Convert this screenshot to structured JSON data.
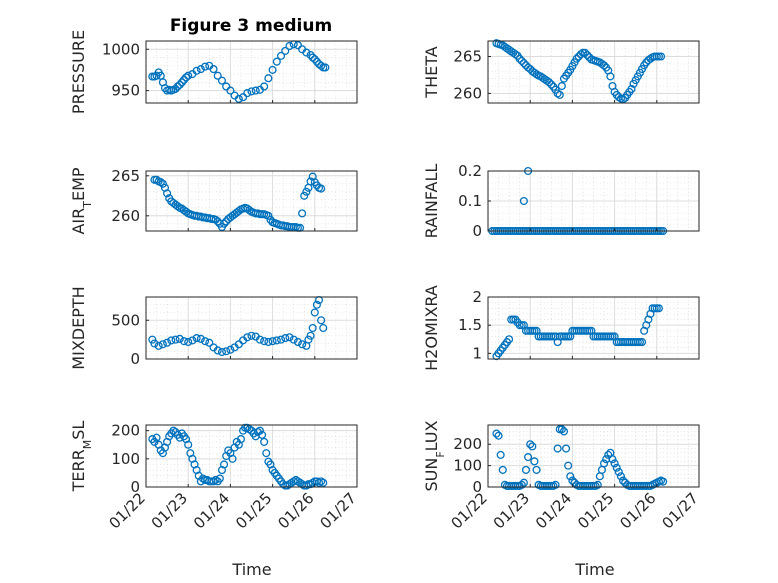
{
  "figure": {
    "title": "Figure 3 medium",
    "marker_color": "#0072BD",
    "time_label": "Time",
    "date_ticks": [
      "01/22",
      "01/23",
      "01/24",
      "01/25",
      "01/26",
      "01/27"
    ]
  },
  "chart_data": [
    {
      "type": "scatter",
      "ylabel": "PRESSURE",
      "ylim": [
        935,
        1010
      ],
      "yticks": [
        950,
        1000
      ],
      "ytick_labels": [
        "950",
        "1000"
      ],
      "show_xtick_labels": false,
      "x": [
        0.15,
        0.2,
        0.25,
        0.3,
        0.35,
        0.4,
        0.45,
        0.5,
        0.55,
        0.6,
        0.65,
        0.7,
        0.75,
        0.8,
        0.85,
        0.9,
        0.95,
        1.0,
        1.1,
        1.2,
        1.3,
        1.4,
        1.5,
        1.6,
        1.7,
        1.8,
        1.9,
        2.0,
        2.1,
        2.2,
        2.3,
        2.4,
        2.5,
        2.6,
        2.7,
        2.8,
        2.9,
        3.0,
        3.1,
        3.2,
        3.3,
        3.4,
        3.5,
        3.6,
        3.7,
        3.8,
        3.9,
        3.95,
        4.0,
        4.05,
        4.1,
        4.15,
        4.2,
        4.25
      ],
      "y": [
        967,
        967,
        968,
        972,
        968,
        960,
        953,
        950,
        951,
        950,
        951,
        952,
        955,
        957,
        960,
        963,
        966,
        968,
        970,
        974,
        976,
        979,
        980,
        976,
        968,
        962,
        955,
        950,
        944,
        940,
        942,
        947,
        949,
        950,
        951,
        955,
        965,
        975,
        985,
        992,
        998,
        1004,
        1006,
        1005,
        1000,
        996,
        993,
        990,
        988,
        985,
        982,
        980,
        978,
        978
      ]
    },
    {
      "type": "scatter",
      "ylabel": "THETA",
      "ylim": [
        258.7,
        267.1
      ],
      "yticks": [
        260,
        265
      ],
      "ytick_labels": [
        "260",
        "265"
      ],
      "show_xtick_labels": false,
      "x": [
        0.2,
        0.25,
        0.3,
        0.35,
        0.4,
        0.45,
        0.5,
        0.55,
        0.6,
        0.65,
        0.7,
        0.75,
        0.8,
        0.85,
        0.9,
        0.95,
        1.0,
        1.05,
        1.1,
        1.15,
        1.2,
        1.25,
        1.3,
        1.35,
        1.4,
        1.45,
        1.5,
        1.55,
        1.6,
        1.65,
        1.7,
        1.75,
        1.8,
        1.85,
        1.9,
        1.95,
        2.0,
        2.05,
        2.1,
        2.15,
        2.2,
        2.25,
        2.3,
        2.35,
        2.4,
        2.45,
        2.5,
        2.55,
        2.6,
        2.65,
        2.7,
        2.75,
        2.8,
        2.85,
        2.9,
        2.95,
        3.0,
        3.05,
        3.1,
        3.15,
        3.2,
        3.25,
        3.3,
        3.35,
        3.4,
        3.45,
        3.5,
        3.55,
        3.6,
        3.65,
        3.7,
        3.75,
        3.8,
        3.85,
        3.9,
        3.95,
        4.0,
        4.05,
        4.1
      ],
      "y": [
        266.8,
        266.7,
        266.6,
        266.5,
        266.3,
        266.1,
        265.9,
        265.7,
        265.5,
        265.3,
        265.1,
        264.7,
        264.4,
        264.1,
        263.8,
        263.5,
        263.3,
        263.0,
        262.8,
        262.6,
        262.4,
        262.3,
        262.1,
        261.9,
        261.7,
        261.5,
        261.2,
        260.9,
        260.5,
        260.0,
        259.8,
        261.0,
        262.0,
        262.4,
        262.8,
        263.2,
        263.7,
        264.2,
        264.7,
        265.0,
        265.3,
        265.5,
        265.5,
        265.2,
        264.9,
        264.6,
        264.5,
        264.4,
        264.3,
        264.2,
        264.0,
        263.8,
        263.5,
        263.1,
        262.3,
        261.0,
        260.2,
        259.8,
        259.5,
        259.3,
        259.2,
        259.4,
        259.8,
        260.2,
        260.6,
        261.3,
        261.8,
        262.3,
        262.8,
        263.3,
        263.8,
        264.2,
        264.5,
        264.7,
        264.9,
        265.0,
        265.0,
        265.0,
        265.0
      ]
    },
    {
      "type": "scatter",
      "ylabel": "AIR_TEMP",
      "ylim": [
        258.1,
        265.6
      ],
      "yticks": [
        260,
        265
      ],
      "ytick_labels": [
        "260",
        "265"
      ],
      "show_xtick_labels": false,
      "x": [
        0.2,
        0.25,
        0.3,
        0.35,
        0.4,
        0.45,
        0.5,
        0.55,
        0.6,
        0.65,
        0.7,
        0.75,
        0.8,
        0.85,
        0.9,
        0.95,
        1.0,
        1.05,
        1.1,
        1.15,
        1.2,
        1.25,
        1.3,
        1.35,
        1.4,
        1.45,
        1.5,
        1.55,
        1.6,
        1.65,
        1.7,
        1.75,
        1.8,
        1.85,
        1.9,
        1.95,
        2.0,
        2.05,
        2.1,
        2.15,
        2.2,
        2.25,
        2.3,
        2.35,
        2.4,
        2.45,
        2.5,
        2.55,
        2.6,
        2.65,
        2.7,
        2.75,
        2.8,
        2.85,
        2.9,
        2.95,
        3.0,
        3.05,
        3.1,
        3.15,
        3.2,
        3.25,
        3.3,
        3.35,
        3.4,
        3.45,
        3.5,
        3.55,
        3.6,
        3.65,
        3.7,
        3.75,
        3.8,
        3.85,
        3.9,
        3.95,
        4.0,
        4.05,
        4.1,
        4.15
      ],
      "y": [
        264.5,
        264.5,
        264.3,
        264.2,
        264.0,
        263.5,
        262.8,
        262.2,
        261.8,
        261.6,
        261.4,
        261.2,
        261.0,
        260.9,
        260.7,
        260.5,
        260.3,
        260.2,
        260.1,
        260.0,
        260.0,
        259.9,
        259.9,
        259.8,
        259.8,
        259.7,
        259.7,
        259.6,
        259.6,
        259.5,
        259.3,
        259.0,
        258.6,
        259.0,
        259.3,
        259.6,
        259.8,
        260.0,
        260.2,
        260.4,
        260.6,
        260.8,
        260.9,
        261.0,
        260.9,
        260.7,
        260.5,
        260.4,
        260.3,
        260.3,
        260.2,
        260.2,
        260.2,
        260.1,
        260.0,
        259.5,
        259.2,
        259.1,
        259.0,
        258.9,
        258.8,
        258.8,
        258.7,
        258.7,
        258.6,
        258.6,
        258.6,
        258.6,
        258.5,
        258.5,
        260.3,
        262.5,
        263.0,
        263.5,
        264.3,
        264.9,
        264.2,
        263.8,
        263.5,
        263.4
      ]
    },
    {
      "type": "scatter",
      "ylabel": "RAINFALL",
      "ylim": [
        0,
        0.2
      ],
      "yticks": [
        0,
        0.1,
        0.2
      ],
      "ytick_labels": [
        "0",
        "0.1",
        "0.2"
      ],
      "show_xtick_labels": false,
      "x": [
        0.1,
        0.15,
        0.2,
        0.25,
        0.3,
        0.35,
        0.4,
        0.45,
        0.5,
        0.55,
        0.6,
        0.65,
        0.7,
        0.75,
        0.8,
        0.85,
        0.9,
        0.95,
        1.0,
        1.05,
        1.1,
        1.15,
        1.2,
        1.25,
        1.3,
        1.35,
        1.4,
        1.45,
        1.5,
        1.55,
        1.6,
        1.65,
        1.7,
        1.75,
        1.8,
        1.85,
        1.9,
        1.95,
        2.0,
        2.05,
        2.1,
        2.15,
        2.2,
        2.25,
        2.3,
        2.35,
        2.4,
        2.45,
        2.5,
        2.55,
        2.6,
        2.65,
        2.7,
        2.75,
        2.8,
        2.85,
        2.9,
        2.95,
        3.0,
        3.05,
        3.1,
        3.15,
        3.2,
        3.25,
        3.3,
        3.35,
        3.4,
        3.45,
        3.5,
        3.55,
        3.6,
        3.65,
        3.7,
        3.75,
        3.8,
        3.85,
        3.9,
        3.95,
        4.0,
        4.05,
        4.1,
        4.15,
        0.85,
        0.95
      ],
      "y": [
        0,
        0,
        0,
        0,
        0,
        0,
        0,
        0,
        0,
        0,
        0,
        0,
        0,
        0,
        0,
        0,
        0,
        0,
        0,
        0,
        0,
        0,
        0,
        0,
        0,
        0,
        0,
        0,
        0,
        0,
        0,
        0,
        0,
        0,
        0,
        0,
        0,
        0,
        0,
        0,
        0,
        0,
        0,
        0,
        0,
        0,
        0,
        0,
        0,
        0,
        0,
        0,
        0,
        0,
        0,
        0,
        0,
        0,
        0,
        0,
        0,
        0,
        0,
        0,
        0,
        0,
        0,
        0,
        0,
        0,
        0,
        0,
        0,
        0,
        0,
        0,
        0,
        0,
        0,
        0,
        0,
        0,
        0.1,
        0.2
      ]
    },
    {
      "type": "scatter",
      "ylabel": "MIXDEPTH",
      "ylim": [
        0,
        800
      ],
      "yticks": [
        0,
        500
      ],
      "ytick_labels": [
        "0",
        "500"
      ],
      "show_xtick_labels": false,
      "x": [
        0.15,
        0.2,
        0.3,
        0.4,
        0.5,
        0.6,
        0.7,
        0.8,
        0.9,
        1.0,
        1.1,
        1.2,
        1.3,
        1.4,
        1.5,
        1.6,
        1.7,
        1.8,
        1.9,
        2.0,
        2.1,
        2.2,
        2.3,
        2.4,
        2.5,
        2.6,
        2.7,
        2.8,
        2.9,
        3.0,
        3.1,
        3.2,
        3.3,
        3.4,
        3.5,
        3.6,
        3.7,
        3.8,
        3.85,
        3.9,
        3.95,
        4.0,
        4.05,
        4.1,
        4.15,
        4.2
      ],
      "y": [
        250,
        200,
        170,
        190,
        210,
        240,
        250,
        260,
        230,
        220,
        240,
        270,
        260,
        230,
        210,
        150,
        110,
        90,
        100,
        120,
        150,
        190,
        240,
        280,
        300,
        290,
        250,
        230,
        220,
        230,
        240,
        250,
        270,
        280,
        250,
        220,
        190,
        170,
        250,
        300,
        400,
        600,
        700,
        760,
        500,
        400
      ]
    },
    {
      "type": "scatter",
      "ylabel": "H2OMIXRA",
      "ylim": [
        0.9,
        2.0
      ],
      "yticks": [
        1,
        1.5,
        2
      ],
      "ytick_labels": [
        "1",
        "1.5",
        "2"
      ],
      "show_xtick_labels": false,
      "x": [
        0.2,
        0.25,
        0.3,
        0.35,
        0.4,
        0.45,
        0.5,
        0.55,
        0.6,
        0.65,
        0.7,
        0.75,
        0.8,
        0.85,
        0.9,
        0.95,
        1.0,
        1.05,
        1.1,
        1.15,
        1.2,
        1.25,
        1.3,
        1.35,
        1.4,
        1.45,
        1.5,
        1.55,
        1.6,
        1.65,
        1.7,
        1.75,
        1.8,
        1.85,
        1.9,
        1.95,
        2.0,
        2.05,
        2.1,
        2.15,
        2.2,
        2.25,
        2.3,
        2.35,
        2.4,
        2.45,
        2.5,
        2.55,
        2.6,
        2.65,
        2.7,
        2.75,
        2.8,
        2.85,
        2.9,
        2.95,
        3.0,
        3.05,
        3.1,
        3.15,
        3.2,
        3.25,
        3.3,
        3.35,
        3.4,
        3.45,
        3.5,
        3.55,
        3.6,
        3.65,
        3.7,
        3.75,
        3.8,
        3.85,
        3.9,
        3.95,
        4.0,
        4.05
      ],
      "y": [
        0.95,
        1.0,
        1.05,
        1.1,
        1.15,
        1.2,
        1.25,
        1.6,
        1.6,
        1.6,
        1.55,
        1.5,
        1.5,
        1.5,
        1.4,
        1.4,
        1.4,
        1.4,
        1.4,
        1.4,
        1.3,
        1.3,
        1.3,
        1.3,
        1.3,
        1.3,
        1.3,
        1.3,
        1.3,
        1.2,
        1.3,
        1.3,
        1.3,
        1.3,
        1.3,
        1.3,
        1.4,
        1.4,
        1.4,
        1.4,
        1.4,
        1.4,
        1.4,
        1.4,
        1.4,
        1.4,
        1.3,
        1.3,
        1.3,
        1.3,
        1.3,
        1.3,
        1.3,
        1.3,
        1.3,
        1.3,
        1.3,
        1.2,
        1.2,
        1.2,
        1.2,
        1.2,
        1.2,
        1.2,
        1.2,
        1.2,
        1.2,
        1.2,
        1.2,
        1.2,
        1.4,
        1.5,
        1.6,
        1.7,
        1.8,
        1.8,
        1.8,
        1.8
      ]
    },
    {
      "type": "scatter",
      "ylabel": "TERR_MSL",
      "ylim": [
        0,
        220
      ],
      "yticks": [
        0,
        100,
        200
      ],
      "ytick_labels": [
        "0",
        "100",
        "200"
      ],
      "show_xtick_labels": true,
      "x": [
        0.15,
        0.2,
        0.25,
        0.3,
        0.35,
        0.4,
        0.45,
        0.5,
        0.55,
        0.6,
        0.65,
        0.7,
        0.75,
        0.8,
        0.85,
        0.9,
        0.95,
        1.0,
        1.05,
        1.1,
        1.15,
        1.2,
        1.25,
        1.3,
        1.35,
        1.4,
        1.45,
        1.5,
        1.55,
        1.6,
        1.65,
        1.7,
        1.75,
        1.8,
        1.85,
        1.9,
        1.95,
        2.0,
        2.05,
        2.1,
        2.15,
        2.2,
        2.25,
        2.3,
        2.35,
        2.4,
        2.45,
        2.5,
        2.55,
        2.6,
        2.65,
        2.7,
        2.75,
        2.8,
        2.85,
        2.9,
        2.95,
        3.0,
        3.05,
        3.1,
        3.15,
        3.2,
        3.25,
        3.3,
        3.35,
        3.4,
        3.45,
        3.5,
        3.55,
        3.6,
        3.65,
        3.7,
        3.75,
        3.8,
        3.85,
        3.9,
        3.95,
        4.0,
        4.05,
        4.1,
        4.15,
        4.2
      ],
      "y": [
        170,
        160,
        175,
        150,
        130,
        120,
        140,
        160,
        180,
        190,
        200,
        195,
        185,
        175,
        190,
        180,
        170,
        150,
        120,
        100,
        80,
        60,
        40,
        20,
        30,
        25,
        25,
        20,
        20,
        20,
        25,
        20,
        30,
        60,
        80,
        110,
        130,
        120,
        100,
        140,
        160,
        150,
        170,
        200,
        210,
        210,
        205,
        200,
        190,
        180,
        195,
        200,
        185,
        160,
        120,
        90,
        80,
        60,
        50,
        40,
        30,
        20,
        10,
        5,
        5,
        10,
        15,
        20,
        25,
        20,
        15,
        10,
        5,
        5,
        10,
        10,
        15,
        20,
        20,
        15,
        20,
        15
      ]
    },
    {
      "type": "scatter",
      "ylabel": "SUN_FLUX",
      "ylim": [
        0,
        290
      ],
      "yticks": [
        0,
        100,
        200
      ],
      "ytick_labels": [
        "0",
        "100",
        "200"
      ],
      "show_xtick_labels": true,
      "x": [
        0.2,
        0.25,
        0.3,
        0.35,
        0.4,
        0.45,
        0.5,
        0.55,
        0.6,
        0.65,
        0.7,
        0.75,
        0.8,
        0.85,
        0.9,
        0.95,
        1.0,
        1.05,
        1.1,
        1.15,
        1.2,
        1.25,
        1.3,
        1.35,
        1.4,
        1.45,
        1.5,
        1.55,
        1.6,
        1.65,
        1.7,
        1.75,
        1.8,
        1.85,
        1.9,
        1.95,
        2.0,
        2.05,
        2.1,
        2.15,
        2.2,
        2.25,
        2.3,
        2.35,
        2.4,
        2.45,
        2.5,
        2.55,
        2.6,
        2.65,
        2.7,
        2.75,
        2.8,
        2.85,
        2.9,
        2.95,
        3.0,
        3.05,
        3.1,
        3.15,
        3.2,
        3.25,
        3.3,
        3.35,
        3.4,
        3.45,
        3.5,
        3.55,
        3.6,
        3.65,
        3.7,
        3.75,
        3.8,
        3.85,
        3.9,
        3.95,
        4.0,
        4.05,
        4.1,
        4.15
      ],
      "y": [
        250,
        240,
        150,
        80,
        10,
        5,
        5,
        5,
        5,
        5,
        5,
        5,
        10,
        20,
        80,
        140,
        200,
        190,
        120,
        80,
        10,
        5,
        5,
        5,
        5,
        5,
        5,
        5,
        10,
        180,
        270,
        270,
        260,
        180,
        100,
        50,
        30,
        20,
        10,
        5,
        5,
        5,
        5,
        5,
        5,
        5,
        5,
        5,
        10,
        50,
        80,
        110,
        130,
        150,
        160,
        130,
        110,
        90,
        70,
        50,
        30,
        20,
        10,
        5,
        5,
        5,
        5,
        5,
        5,
        5,
        5,
        5,
        5,
        5,
        10,
        15,
        20,
        25,
        30,
        25
      ]
    }
  ]
}
